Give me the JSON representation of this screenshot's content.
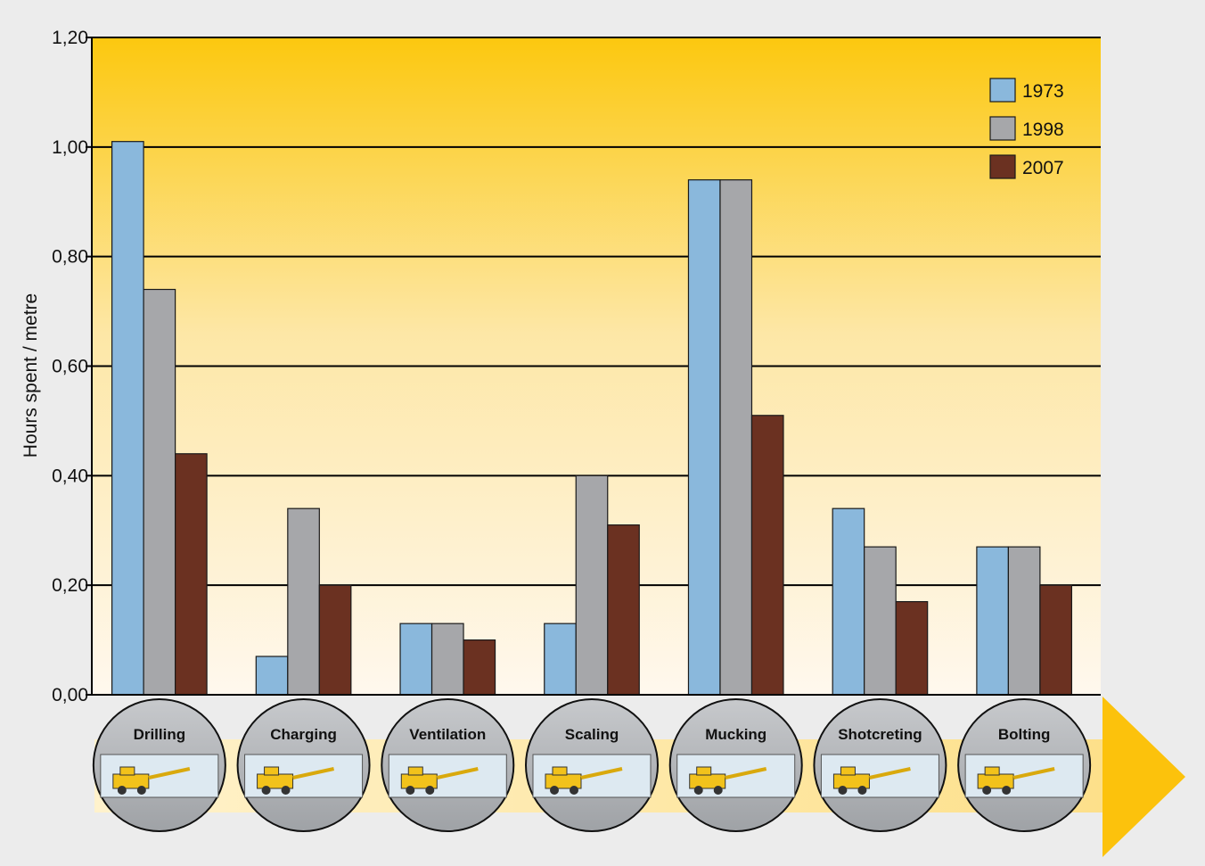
{
  "chart_data": {
    "type": "bar",
    "title": "",
    "xlabel": "",
    "ylabel": "Hours spent / metre",
    "ylim": [
      0,
      1.2
    ],
    "y_ticks": [
      "0,00",
      "0,20",
      "0,40",
      "0,60",
      "0,80",
      "1,00",
      "1,20"
    ],
    "y_tick_values": [
      0,
      0.2,
      0.4,
      0.6,
      0.8,
      1.0,
      1.2
    ],
    "grid": true,
    "legend_position": "top-right",
    "categories": [
      "Drilling",
      "Charging",
      "Ventilation",
      "Scaling",
      "Mucking",
      "Shotcreting",
      "Bolting"
    ],
    "series": [
      {
        "name": "1973",
        "color": "#8ab8dc",
        "values": [
          1.01,
          0.07,
          0.13,
          0.13,
          0.94,
          0.34,
          0.27
        ]
      },
      {
        "name": "1998",
        "color": "#a6a7aa",
        "values": [
          0.74,
          0.34,
          0.13,
          0.4,
          0.94,
          0.27,
          0.27
        ]
      },
      {
        "name": "2007",
        "color": "#6b3121",
        "values": [
          0.44,
          0.2,
          0.1,
          0.31,
          0.51,
          0.17,
          0.2
        ]
      }
    ]
  },
  "colors": {
    "background_top": "#fcc80f",
    "background_bottom": "#fff8ee",
    "process_band": "#fde49a",
    "arrow": "#fcc20c",
    "circle_fill": "#b4b6b9"
  },
  "icons": [
    "drill-rig-icon",
    "charging-rig-icon",
    "ventilation-icon",
    "scaling-rig-icon",
    "loader-icon",
    "shotcrete-rig-icon",
    "bolting-rig-icon"
  ]
}
